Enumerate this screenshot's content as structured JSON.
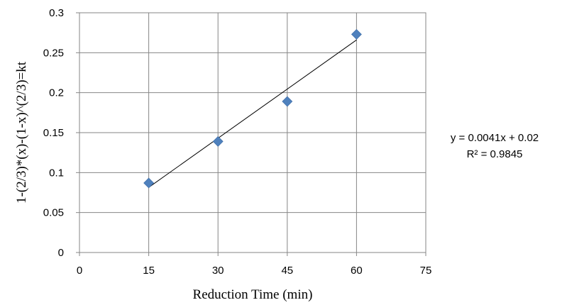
{
  "chart_data": {
    "type": "scatter",
    "title": "",
    "xlabel": "Reduction Time (min)",
    "ylabel": "1-(2/3)*(x)-(1-x)^(2/3)=kt",
    "xlim": [
      0,
      75
    ],
    "ylim": [
      0,
      0.3
    ],
    "x_ticks": [
      0,
      15,
      30,
      45,
      60,
      75
    ],
    "y_ticks": [
      0,
      0.05,
      0.1,
      0.15,
      0.2,
      0.25,
      0.3
    ],
    "x_tick_labels": [
      "0",
      "15",
      "30",
      "45",
      "60",
      "75"
    ],
    "y_tick_labels": [
      "0",
      "0.05",
      "0.1",
      "0.15",
      "0.2",
      "0.25",
      "0.3"
    ],
    "grid": true,
    "legend": "none",
    "series": [
      {
        "marker": "diamond",
        "color": "#4F81BD",
        "x": [
          15,
          30,
          45,
          60
        ],
        "y": [
          0.087,
          0.139,
          0.189,
          0.273
        ]
      }
    ],
    "trendline": {
      "type": "linear",
      "slope": 0.0041,
      "intercept": 0.02,
      "x_range": [
        15,
        60
      ],
      "color": "#000000"
    },
    "annotations": {
      "equation": "y = 0.0041x + 0.02",
      "r_squared": "R² = 0.9845"
    }
  }
}
